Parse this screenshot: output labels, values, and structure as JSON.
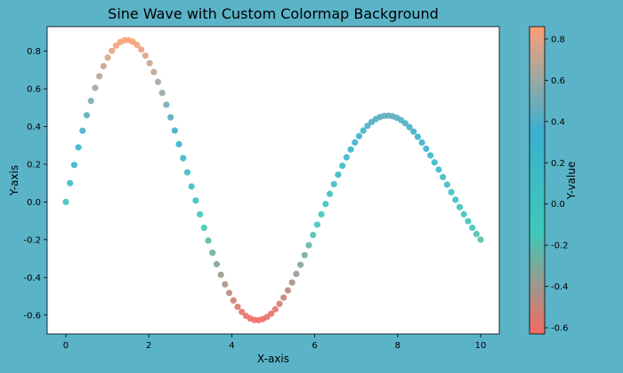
{
  "colors": {
    "figure_background": "#5bb3c8",
    "axes_background": "#ffffff",
    "colormap": [
      "#f56b63",
      "#3dc9b8",
      "#3ab0cf",
      "#ff9f76"
    ]
  },
  "chart_data": {
    "type": "scatter",
    "title": "Sine Wave with Custom Colormap Background",
    "xlabel": "X-axis",
    "ylabel": "Y-axis",
    "xlim": [
      -0.45,
      10.45
    ],
    "ylim": [
      -0.7,
      0.93
    ],
    "x_ticks": [
      0,
      2,
      4,
      6,
      8,
      10
    ],
    "x_tick_labels": [
      "0",
      "2",
      "4",
      "6",
      "8",
      "10"
    ],
    "y_ticks": [
      -0.6,
      -0.4,
      -0.2,
      0.0,
      0.2,
      0.4,
      0.6,
      0.8
    ],
    "y_tick_labels": [
      "-0.6",
      "-0.4",
      "-0.2",
      "0.0",
      "0.2",
      "0.4",
      "0.6",
      "0.8"
    ],
    "series": [
      {
        "x_start": 0,
        "x_end": 10,
        "num_points": 100,
        "function": "sin(x) * exp(-0.1 * x)",
        "color_by": "y",
        "x": [
          0,
          10
        ],
        "y": [
          0.0,
          -0.2
        ]
      }
    ],
    "colorbar": {
      "label": "Y-value",
      "range": [
        -0.63,
        0.86
      ],
      "ticks": [
        -0.6,
        -0.4,
        -0.2,
        0.0,
        0.2,
        0.4,
        0.6,
        0.8
      ],
      "tick_labels": [
        "-0.6",
        "-0.4",
        "-0.2",
        "0.0",
        "0.2",
        "0.4",
        "0.6",
        "0.8"
      ]
    },
    "grid": false,
    "legend": "none"
  }
}
